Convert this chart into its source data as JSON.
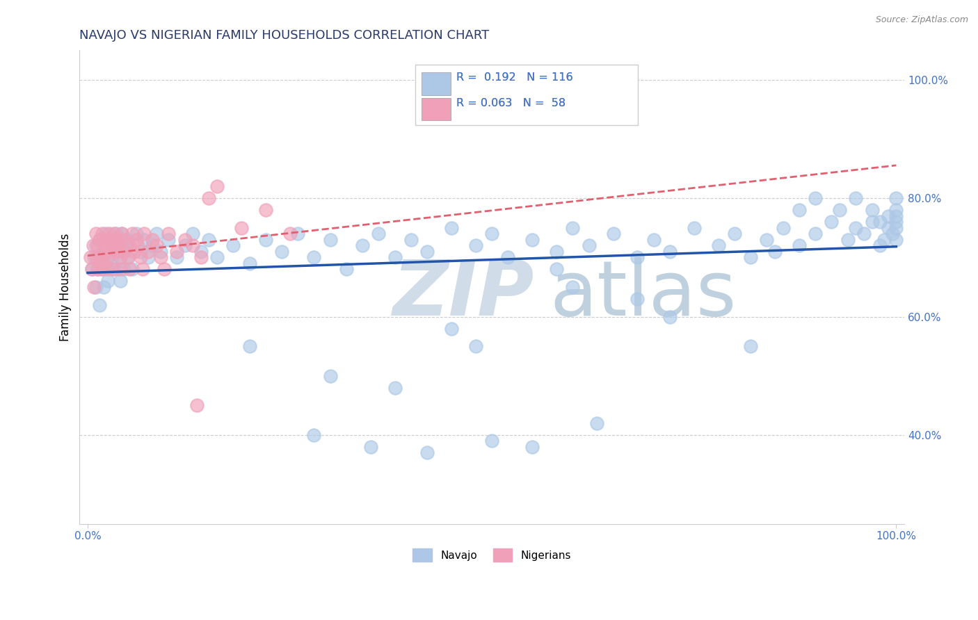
{
  "title": "NAVAJO VS NIGERIAN FAMILY HOUSEHOLDS CORRELATION CHART",
  "source": "Source: ZipAtlas.com",
  "ylabel": "Family Households",
  "navajo_R": 0.192,
  "navajo_N": 116,
  "nigerian_R": 0.063,
  "nigerian_N": 58,
  "navajo_color": "#adc8e6",
  "nigerian_color": "#f0a0b8",
  "navajo_line_color": "#2255aa",
  "nigerian_line_color": "#e06070",
  "title_color": "#2a3a6a",
  "label_color": "#4472c4",
  "grid_color": "#cccccc",
  "watermark_zip_color": "#d0dce8",
  "watermark_atlas_color": "#b8ccdc",
  "xmin": 0.0,
  "xmax": 1.0,
  "ymin": 0.25,
  "ymax": 1.05,
  "yticks": [
    0.4,
    0.6,
    0.8,
    1.0
  ],
  "ytick_labels": [
    "40.0%",
    "60.0%",
    "80.0%",
    "100.0%"
  ],
  "navajo_x": [
    0.005,
    0.008,
    0.01,
    0.01,
    0.012,
    0.015,
    0.015,
    0.017,
    0.018,
    0.02,
    0.02,
    0.022,
    0.025,
    0.025,
    0.027,
    0.03,
    0.03,
    0.032,
    0.035,
    0.035,
    0.038,
    0.04,
    0.04,
    0.042,
    0.045,
    0.045,
    0.048,
    0.05,
    0.052,
    0.055,
    0.06,
    0.065,
    0.07,
    0.075,
    0.08,
    0.085,
    0.09,
    0.1,
    0.11,
    0.12,
    0.13,
    0.14,
    0.15,
    0.16,
    0.18,
    0.2,
    0.22,
    0.24,
    0.26,
    0.28,
    0.3,
    0.32,
    0.34,
    0.36,
    0.38,
    0.4,
    0.42,
    0.45,
    0.48,
    0.5,
    0.52,
    0.55,
    0.58,
    0.6,
    0.62,
    0.65,
    0.68,
    0.7,
    0.72,
    0.75,
    0.78,
    0.8,
    0.82,
    0.84,
    0.85,
    0.86,
    0.88,
    0.88,
    0.9,
    0.9,
    0.92,
    0.93,
    0.94,
    0.95,
    0.95,
    0.96,
    0.97,
    0.97,
    0.98,
    0.98,
    0.985,
    0.99,
    0.99,
    0.995,
    1.0,
    1.0,
    1.0,
    1.0,
    1.0,
    1.0,
    0.5,
    0.42,
    0.55,
    0.35,
    0.28,
    0.63,
    0.72,
    0.2,
    0.48,
    0.38,
    0.6,
    0.68,
    0.3,
    0.58,
    0.45,
    0.82
  ],
  "navajo_y": [
    0.68,
    0.7,
    0.72,
    0.65,
    0.68,
    0.73,
    0.62,
    0.7,
    0.68,
    0.72,
    0.65,
    0.74,
    0.7,
    0.66,
    0.73,
    0.7,
    0.68,
    0.72,
    0.74,
    0.68,
    0.72,
    0.7,
    0.66,
    0.74,
    0.71,
    0.68,
    0.73,
    0.7,
    0.72,
    0.68,
    0.74,
    0.71,
    0.73,
    0.7,
    0.72,
    0.74,
    0.71,
    0.73,
    0.7,
    0.72,
    0.74,
    0.71,
    0.73,
    0.7,
    0.72,
    0.69,
    0.73,
    0.71,
    0.74,
    0.7,
    0.73,
    0.68,
    0.72,
    0.74,
    0.7,
    0.73,
    0.71,
    0.75,
    0.72,
    0.74,
    0.7,
    0.73,
    0.71,
    0.75,
    0.72,
    0.74,
    0.7,
    0.73,
    0.71,
    0.75,
    0.72,
    0.74,
    0.7,
    0.73,
    0.71,
    0.75,
    0.78,
    0.72,
    0.8,
    0.74,
    0.76,
    0.78,
    0.73,
    0.75,
    0.8,
    0.74,
    0.76,
    0.78,
    0.72,
    0.76,
    0.73,
    0.75,
    0.77,
    0.74,
    0.76,
    0.78,
    0.73,
    0.75,
    0.77,
    0.8,
    0.39,
    0.37,
    0.38,
    0.38,
    0.4,
    0.42,
    0.6,
    0.55,
    0.55,
    0.48,
    0.65,
    0.63,
    0.5,
    0.68,
    0.58,
    0.55
  ],
  "nigerian_x": [
    0.003,
    0.005,
    0.007,
    0.008,
    0.01,
    0.01,
    0.012,
    0.012,
    0.015,
    0.015,
    0.017,
    0.018,
    0.02,
    0.02,
    0.022,
    0.022,
    0.025,
    0.025,
    0.027,
    0.028,
    0.03,
    0.03,
    0.032,
    0.033,
    0.035,
    0.035,
    0.038,
    0.04,
    0.04,
    0.042,
    0.045,
    0.045,
    0.048,
    0.05,
    0.052,
    0.055,
    0.058,
    0.06,
    0.062,
    0.065,
    0.068,
    0.07,
    0.075,
    0.08,
    0.085,
    0.09,
    0.095,
    0.1,
    0.11,
    0.12,
    0.13,
    0.14,
    0.15,
    0.16,
    0.19,
    0.22,
    0.25,
    0.135
  ],
  "nigerian_y": [
    0.7,
    0.68,
    0.72,
    0.65,
    0.74,
    0.7,
    0.72,
    0.68,
    0.73,
    0.7,
    0.68,
    0.74,
    0.71,
    0.69,
    0.73,
    0.72,
    0.7,
    0.68,
    0.74,
    0.71,
    0.73,
    0.72,
    0.68,
    0.74,
    0.71,
    0.73,
    0.72,
    0.7,
    0.68,
    0.74,
    0.71,
    0.73,
    0.72,
    0.7,
    0.68,
    0.74,
    0.71,
    0.73,
    0.72,
    0.7,
    0.68,
    0.74,
    0.71,
    0.73,
    0.72,
    0.7,
    0.68,
    0.74,
    0.71,
    0.73,
    0.72,
    0.7,
    0.8,
    0.82,
    0.75,
    0.78,
    0.74,
    0.45
  ]
}
